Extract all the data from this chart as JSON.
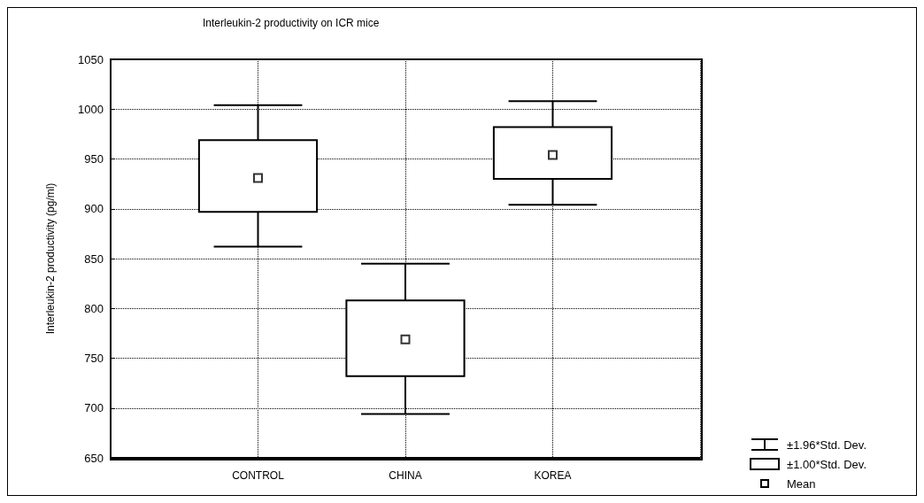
{
  "chart_data": {
    "type": "box",
    "title": "Interleukin-2 productivity on ICR mice",
    "ylabel": "Interleukin-2 productivity (pg/ml)",
    "categories": [
      "CONTROL",
      "CHINA",
      "KOREA"
    ],
    "boxes": [
      {
        "low": 862,
        "q1": 897,
        "median": 931,
        "q3": 969,
        "high": 1004
      },
      {
        "low": 694,
        "q1": 732,
        "median": 769,
        "q3": 808,
        "high": 845
      },
      {
        "low": 904,
        "q1": 930,
        "median": 954,
        "q3": 982,
        "high": 1008
      }
    ],
    "ylim": [
      650,
      1050
    ],
    "yticks": [
      650,
      700,
      750,
      800,
      850,
      900,
      950,
      1000,
      1050
    ],
    "grid": true,
    "marker": "square",
    "annotations": [
      "±1.96*Std. Dev.",
      "±1.00*Std. Dev.",
      "Mean"
    ]
  }
}
